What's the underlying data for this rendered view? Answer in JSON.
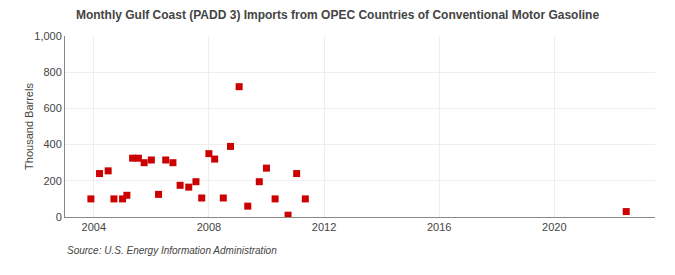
{
  "chart_data": {
    "type": "scatter",
    "title": "Monthly Gulf Coast (PADD 3) Imports from OPEC Countries of Conventional Motor Gasoline",
    "ylabel": "Thousand Barrels",
    "annotations": [
      "Source: U.S. Energy Information Administration"
    ],
    "color": "#cc0000",
    "marker": "square",
    "x": [
      2003.9,
      2004.2,
      2004.5,
      2004.7,
      2005.0,
      2005.15,
      2005.35,
      2005.55,
      2005.75,
      2006.0,
      2006.25,
      2006.5,
      2006.75,
      2007.0,
      2007.3,
      2007.55,
      2007.75,
      2008.0,
      2008.2,
      2008.5,
      2008.75,
      2009.05,
      2009.35,
      2009.75,
      2010.0,
      2010.3,
      2010.75,
      2011.05,
      2011.35,
      2022.5
    ],
    "values": [
      100,
      240,
      255,
      100,
      100,
      120,
      325,
      325,
      300,
      315,
      125,
      315,
      300,
      175,
      165,
      195,
      105,
      350,
      320,
      105,
      390,
      720,
      60,
      195,
      270,
      100,
      10,
      240,
      100,
      30
    ],
    "xlim": [
      2003.0,
      2023.5
    ],
    "xticks": [
      2004,
      2008,
      2012,
      2016,
      2020
    ],
    "ylim": [
      0,
      1000
    ],
    "yticks": [
      0,
      200,
      400,
      600,
      800,
      {
        "value": 1000,
        "label": "1,000"
      }
    ],
    "grid": true
  }
}
